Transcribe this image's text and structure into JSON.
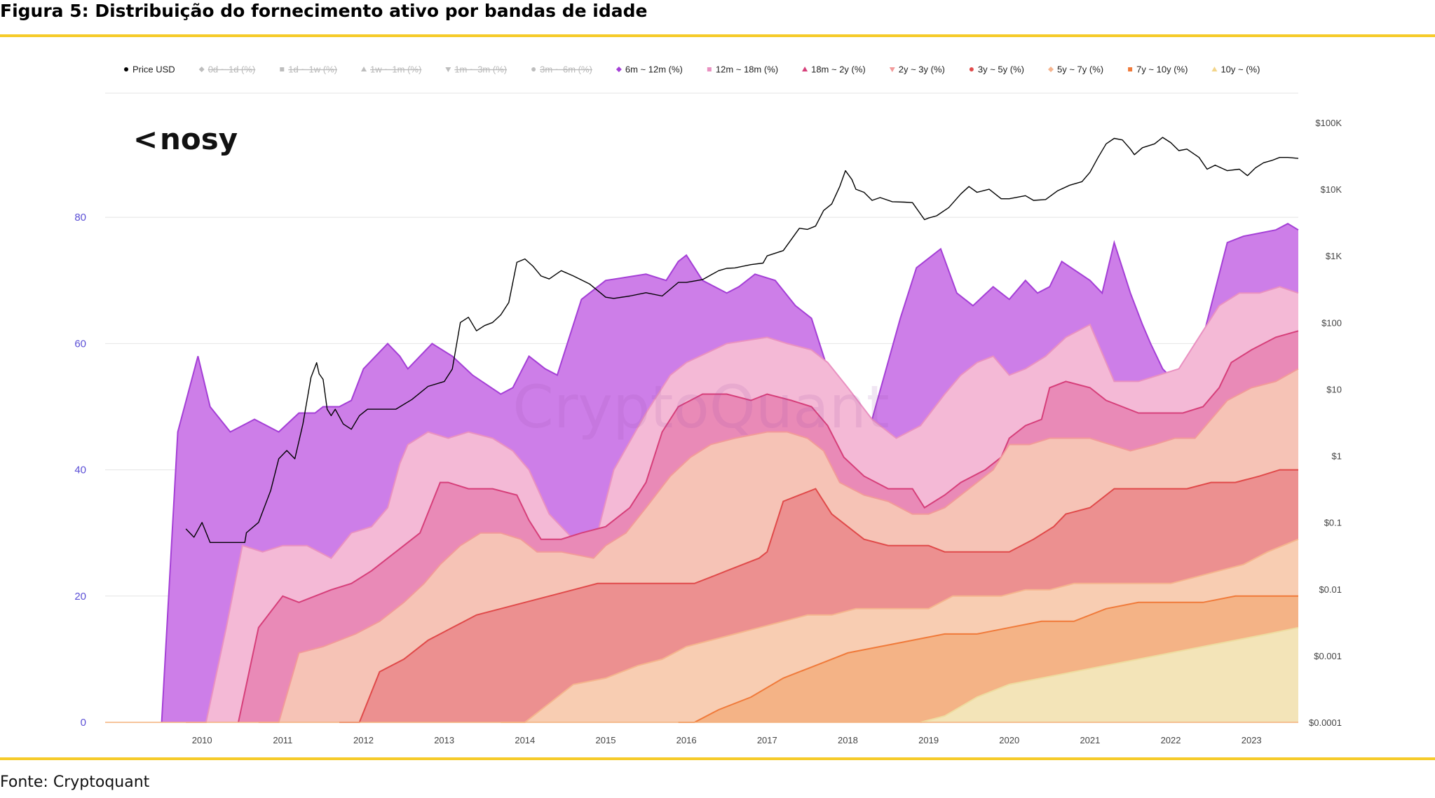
{
  "figure": {
    "title": "Figura 5: Distribuição do fornecimento ativo por bandas de idade",
    "source": "Fonte: Cryptoquant",
    "rule_color": "#F6CB2A"
  },
  "logo": {
    "text": "nosy",
    "mark": "<"
  },
  "watermark": "CryptoQuant",
  "chart_data": {
    "type": "area",
    "title": "Distribuição do fornecimento ativo por bandas de idade",
    "stacking": "cumulative",
    "x_range": [
      2008.8,
      2023.58
    ],
    "x_ticks": [
      "2010",
      "2011",
      "2012",
      "2013",
      "2014",
      "2015",
      "2016",
      "2017",
      "2018",
      "2019",
      "2020",
      "2021",
      "2022",
      "2023"
    ],
    "y_left": {
      "label": "%",
      "range": [
        0,
        95
      ],
      "ticks": [
        "0",
        "20",
        "40",
        "60",
        "80"
      ]
    },
    "y_right": {
      "label": "Price USD",
      "scale": "log",
      "ticks": [
        "$0.0001",
        "$0.001",
        "$0.01",
        "$0.1",
        "$1",
        "$10",
        "$100",
        "$1K",
        "$10K",
        "$100K"
      ]
    },
    "legend": [
      {
        "name": "Price USD",
        "marker": "circle",
        "color": "#000000",
        "enabled": true
      },
      {
        "name": "0d ~ 1d (%)",
        "marker": "diamond",
        "color": "#b9b9b9",
        "enabled": false
      },
      {
        "name": "1d ~ 1w (%)",
        "marker": "square",
        "color": "#b9b9b9",
        "enabled": false
      },
      {
        "name": "1w ~ 1m (%)",
        "marker": "triangle",
        "color": "#b9b9b9",
        "enabled": false
      },
      {
        "name": "1m ~ 3m (%)",
        "marker": "triangle-down",
        "color": "#b9b9b9",
        "enabled": false
      },
      {
        "name": "3m ~ 6m (%)",
        "marker": "circle",
        "color": "#b9b9b9",
        "enabled": false
      },
      {
        "name": "6m ~ 12m (%)",
        "marker": "diamond",
        "color": "#a43fd6",
        "enabled": true
      },
      {
        "name": "12m ~ 18m (%)",
        "marker": "square",
        "color": "#e991c1",
        "enabled": true
      },
      {
        "name": "18m ~ 2y (%)",
        "marker": "triangle",
        "color": "#d63f7a",
        "enabled": true
      },
      {
        "name": "2y ~ 3y (%)",
        "marker": "triangle-down",
        "color": "#f29a9a",
        "enabled": true
      },
      {
        "name": "3y ~ 5y (%)",
        "marker": "circle",
        "color": "#e04a4a",
        "enabled": true
      },
      {
        "name": "5y ~ 7y (%)",
        "marker": "diamond",
        "color": "#f5b48e",
        "enabled": true
      },
      {
        "name": "7y ~ 10y (%)",
        "marker": "square",
        "color": "#f07a3a",
        "enabled": true
      },
      {
        "name": "10y ~ (%)",
        "marker": "triangle",
        "color": "#f3d58a",
        "enabled": true
      }
    ],
    "series": [
      {
        "name": "6m ~ 12m (%)",
        "fill": "#cd7ee8",
        "line": "#a43fd6",
        "x": [
          2009.5,
          2009.7,
          2009.95,
          2010.1,
          2010.35,
          2010.5,
          2010.65,
          2010.95,
          2011.2,
          2011.4,
          2011.5,
          2011.7,
          2011.85,
          2012.0,
          2012.3,
          2012.45,
          2012.55,
          2012.85,
          2013.1,
          2013.35,
          2013.7,
          2013.85,
          2014.05,
          2014.25,
          2014.4,
          2014.7,
          2015.0,
          2015.5,
          2015.75,
          2015.9,
          2016.0,
          2016.2,
          2016.5,
          2016.65,
          2016.85,
          2017.1,
          2017.35,
          2017.55,
          2017.65,
          2017.85,
          2018.05,
          2018.3,
          2018.65,
          2018.85,
          2019.15,
          2019.35,
          2019.55,
          2019.8,
          2020.0,
          2020.2,
          2020.35,
          2020.5,
          2020.65,
          2021.0,
          2021.15,
          2021.3,
          2021.5,
          2021.65,
          2021.75,
          2021.9,
          2022.05,
          2022.4,
          2022.7,
          2022.9,
          2023.3,
          2023.45,
          2023.58
        ],
        "top": [
          0,
          46,
          58,
          50,
          46,
          47,
          48,
          46,
          49,
          49,
          50,
          50,
          51,
          56,
          60,
          58,
          56,
          60,
          58,
          55,
          52,
          53,
          58,
          56,
          55,
          67,
          70,
          71,
          70,
          73,
          74,
          70,
          68,
          69,
          71,
          70,
          66,
          64,
          60,
          52,
          42,
          48,
          64,
          72,
          75,
          68,
          66,
          69,
          67,
          70,
          68,
          69,
          73,
          70,
          68,
          76,
          68,
          63,
          60,
          56,
          54,
          61,
          76,
          77,
          78,
          79,
          78
        ]
      },
      {
        "name": "12m ~ 18m (%)",
        "fill": "#f4b9d6",
        "line": "#e991c1",
        "x": [
          2009.8,
          2010.05,
          2010.3,
          2010.5,
          2010.75,
          2011.0,
          2011.3,
          2011.6,
          2011.85,
          2012.1,
          2012.3,
          2012.45,
          2012.55,
          2012.8,
          2013.05,
          2013.3,
          2013.6,
          2013.85,
          2014.05,
          2014.3,
          2014.6,
          2014.9,
          2015.1,
          2015.5,
          2015.8,
          2016.0,
          2016.5,
          2017.0,
          2017.25,
          2017.55,
          2017.75,
          2018.0,
          2018.3,
          2018.6,
          2018.9,
          2019.2,
          2019.4,
          2019.6,
          2019.8,
          2020.0,
          2020.2,
          2020.45,
          2020.7,
          2021.0,
          2021.3,
          2021.6,
          2021.85,
          2022.1,
          2022.4,
          2022.6,
          2022.85,
          2023.1,
          2023.35,
          2023.58
        ],
        "top": [
          0,
          0,
          15,
          28,
          27,
          28,
          28,
          26,
          30,
          31,
          34,
          41,
          44,
          46,
          45,
          46,
          45,
          43,
          40,
          33,
          29,
          30,
          40,
          49,
          55,
          57,
          60,
          61,
          60,
          59,
          57,
          53,
          48,
          45,
          47,
          52,
          55,
          57,
          58,
          55,
          56,
          58,
          61,
          63,
          54,
          54,
          55,
          56,
          62,
          66,
          68,
          68,
          69,
          68
        ]
      },
      {
        "name": "18m ~ 2y (%)",
        "fill": "#e98ab7",
        "line": "#d63f7a",
        "x": [
          2010.45,
          2010.7,
          2011.0,
          2011.2,
          2011.4,
          2011.6,
          2011.85,
          2012.1,
          2012.4,
          2012.7,
          2012.95,
          2013.05,
          2013.3,
          2013.6,
          2013.9,
          2014.05,
          2014.2,
          2014.45,
          2014.7,
          2015.0,
          2015.3,
          2015.5,
          2015.7,
          2015.9,
          2016.2,
          2016.5,
          2016.8,
          2017.0,
          2017.3,
          2017.55,
          2017.75,
          2017.95,
          2018.2,
          2018.5,
          2018.8,
          2018.95,
          2019.2,
          2019.4,
          2019.7,
          2019.9,
          2020.0,
          2020.2,
          2020.4,
          2020.5,
          2020.7,
          2021.0,
          2021.2,
          2021.4,
          2021.6,
          2021.85,
          2022.15,
          2022.4,
          2022.6,
          2022.75,
          2023.0,
          2023.3,
          2023.58
        ],
        "top": [
          0,
          15,
          20,
          19,
          20,
          21,
          22,
          24,
          27,
          30,
          38,
          38,
          37,
          37,
          36,
          32,
          29,
          29,
          30,
          31,
          34,
          38,
          46,
          50,
          52,
          52,
          51,
          52,
          51,
          50,
          47,
          42,
          39,
          37,
          37,
          34,
          36,
          38,
          40,
          42,
          45,
          47,
          48,
          53,
          54,
          53,
          51,
          50,
          49,
          49,
          49,
          50,
          53,
          57,
          59,
          61,
          62
        ]
      },
      {
        "name": "2y ~ 3y (%)",
        "fill": "#f6c3b6",
        "line": "#f29a9a",
        "x": [
          2010.7,
          2010.95,
          2011.2,
          2011.5,
          2011.9,
          2012.2,
          2012.5,
          2012.75,
          2012.95,
          2013.2,
          2013.45,
          2013.7,
          2013.95,
          2014.15,
          2014.45,
          2014.85,
          2015.0,
          2015.25,
          2015.5,
          2015.8,
          2016.05,
          2016.3,
          2016.6,
          2017.0,
          2017.25,
          2017.5,
          2017.7,
          2017.9,
          2018.2,
          2018.5,
          2018.8,
          2019.0,
          2019.2,
          2019.5,
          2019.8,
          2020.0,
          2020.25,
          2020.5,
          2020.75,
          2021.0,
          2021.25,
          2021.5,
          2021.8,
          2022.05,
          2022.3,
          2022.5,
          2022.7,
          2023.0,
          2023.3,
          2023.58
        ],
        "top": [
          0,
          0,
          11,
          12,
          14,
          16,
          19,
          22,
          25,
          28,
          30,
          30,
          29,
          27,
          27,
          26,
          28,
          30,
          34,
          39,
          42,
          44,
          45,
          46,
          46,
          45,
          43,
          38,
          36,
          35,
          33,
          33,
          34,
          37,
          40,
          44,
          44,
          45,
          45,
          45,
          44,
          43,
          44,
          45,
          45,
          48,
          51,
          53,
          54,
          56
        ]
      },
      {
        "name": "3y ~ 5y (%)",
        "fill": "#ec9090",
        "line": "#e04a4a",
        "x": [
          2011.7,
          2011.95,
          2012.2,
          2012.5,
          2012.8,
          2013.1,
          2013.4,
          2013.7,
          2014.0,
          2014.3,
          2014.6,
          2014.9,
          2015.2,
          2015.5,
          2015.8,
          2016.1,
          2016.3,
          2016.5,
          2016.7,
          2016.9,
          2017.0,
          2017.2,
          2017.4,
          2017.6,
          2017.8,
          2018.0,
          2018.2,
          2018.5,
          2018.75,
          2019.0,
          2019.2,
          2019.5,
          2019.8,
          2020.0,
          2020.3,
          2020.55,
          2020.7,
          2021.0,
          2021.3,
          2021.55,
          2021.9,
          2022.2,
          2022.5,
          2022.8,
          2023.1,
          2023.35,
          2023.58
        ],
        "top": [
          0,
          0,
          8,
          10,
          13,
          15,
          17,
          18,
          19,
          20,
          21,
          22,
          22,
          22,
          22,
          22,
          23,
          24,
          25,
          26,
          27,
          35,
          36,
          37,
          33,
          31,
          29,
          28,
          28,
          28,
          27,
          27,
          27,
          27,
          29,
          31,
          33,
          34,
          37,
          37,
          37,
          37,
          38,
          38,
          39,
          40,
          40
        ]
      },
      {
        "name": "5y ~ 7y (%)",
        "fill": "#f8cdb2",
        "line": "#f5b48e",
        "x": [
          2013.7,
          2014.0,
          2014.3,
          2014.6,
          2015.0,
          2015.4,
          2015.7,
          2016.0,
          2016.3,
          2016.6,
          2016.9,
          2017.2,
          2017.5,
          2017.8,
          2018.1,
          2018.4,
          2018.7,
          2019.0,
          2019.3,
          2019.6,
          2019.9,
          2020.2,
          2020.5,
          2020.8,
          2021.1,
          2021.4,
          2021.7,
          2022.0,
          2022.3,
          2022.6,
          2022.9,
          2023.2,
          2023.58
        ],
        "top": [
          0,
          0,
          3,
          6,
          7,
          9,
          10,
          12,
          13,
          14,
          15,
          16,
          17,
          17,
          18,
          18,
          18,
          18,
          20,
          20,
          20,
          21,
          21,
          22,
          22,
          22,
          22,
          22,
          23,
          24,
          25,
          27,
          29
        ]
      },
      {
        "name": "7y ~ 10y (%)",
        "fill": "#f4b386",
        "line": "#f07a3a",
        "x": [
          2015.9,
          2016.1,
          2016.4,
          2016.8,
          2017.2,
          2017.6,
          2018.0,
          2018.4,
          2018.8,
          2019.2,
          2019.6,
          2020.0,
          2020.4,
          2020.8,
          2021.2,
          2021.6,
          2022.0,
          2022.4,
          2022.8,
          2023.2,
          2023.58
        ],
        "top": [
          0,
          0,
          2,
          4,
          7,
          9,
          11,
          12,
          13,
          14,
          14,
          15,
          16,
          16,
          18,
          19,
          19,
          19,
          20,
          20,
          20
        ]
      },
      {
        "name": "10y ~ (%)",
        "fill": "#f3e4b8",
        "line": "#eedca0",
        "x": [
          2018.9,
          2019.2,
          2019.6,
          2020.0,
          2020.4,
          2020.8,
          2021.2,
          2021.6,
          2022.0,
          2022.4,
          2022.8,
          2023.2,
          2023.58
        ],
        "top": [
          0,
          1,
          4,
          6,
          7,
          8,
          9,
          10,
          11,
          12,
          13,
          14,
          15
        ]
      }
    ],
    "price_usd": {
      "color": "#000000",
      "x": [
        2009.8,
        2009.9,
        2010.0,
        2010.1,
        2010.2,
        2010.3,
        2010.45,
        2010.53,
        2010.55,
        2010.7,
        2010.85,
        2010.95,
        2011.05,
        2011.15,
        2011.25,
        2011.35,
        2011.42,
        2011.45,
        2011.5,
        2011.55,
        2011.6,
        2011.65,
        2011.75,
        2011.85,
        2011.95,
        2012.05,
        2012.2,
        2012.4,
        2012.6,
        2012.8,
        2013.0,
        2013.1,
        2013.2,
        2013.3,
        2013.4,
        2013.5,
        2013.6,
        2013.7,
        2013.8,
        2013.9,
        2014.0,
        2014.1,
        2014.2,
        2014.3,
        2014.45,
        2014.6,
        2014.8,
        2015.0,
        2015.1,
        2015.3,
        2015.5,
        2015.7,
        2015.9,
        2016.0,
        2016.2,
        2016.4,
        2016.5,
        2016.6,
        2016.8,
        2016.95,
        2017.0,
        2017.2,
        2017.4,
        2017.5,
        2017.6,
        2017.7,
        2017.8,
        2017.9,
        2017.97,
        2018.05,
        2018.1,
        2018.2,
        2018.3,
        2018.4,
        2018.55,
        2018.7,
        2018.8,
        2018.95,
        2019.0,
        2019.1,
        2019.25,
        2019.4,
        2019.5,
        2019.6,
        2019.75,
        2019.9,
        2020.0,
        2020.2,
        2020.3,
        2020.45,
        2020.6,
        2020.75,
        2020.9,
        2021.0,
        2021.1,
        2021.2,
        2021.3,
        2021.4,
        2021.5,
        2021.55,
        2021.65,
        2021.8,
        2021.9,
        2022.0,
        2022.1,
        2022.2,
        2022.35,
        2022.45,
        2022.55,
        2022.7,
        2022.85,
        2022.95,
        2023.05,
        2023.15,
        2023.25,
        2023.35,
        2023.45,
        2023.58
      ],
      "y": [
        0.08,
        0.06,
        0.1,
        0.05,
        0.05,
        0.05,
        0.05,
        0.05,
        0.07,
        0.1,
        0.3,
        0.9,
        1.2,
        0.9,
        3,
        15,
        25,
        17,
        14,
        5,
        4,
        5,
        3,
        2.5,
        4,
        5,
        5,
        5,
        7,
        11,
        13,
        20,
        100,
        120,
        75,
        90,
        100,
        130,
        200,
        800,
        900,
        700,
        500,
        450,
        600,
        500,
        380,
        240,
        230,
        250,
        280,
        250,
        400,
        400,
        440,
        600,
        650,
        660,
        740,
        780,
        1000,
        1200,
        2600,
        2500,
        2800,
        4800,
        6000,
        11000,
        19000,
        14000,
        10000,
        9000,
        6800,
        7500,
        6500,
        6400,
        6300,
        3500,
        3700,
        4000,
        5300,
        8500,
        11000,
        9000,
        10000,
        7200,
        7200,
        8000,
        6800,
        7000,
        9500,
        11500,
        13000,
        18000,
        30000,
        48000,
        58000,
        55000,
        40000,
        33000,
        42000,
        48000,
        60000,
        50000,
        38000,
        40000,
        30000,
        20000,
        23000,
        19000,
        20000,
        16000,
        21000,
        25000,
        27000,
        30000,
        30000,
        29000
      ]
    }
  }
}
